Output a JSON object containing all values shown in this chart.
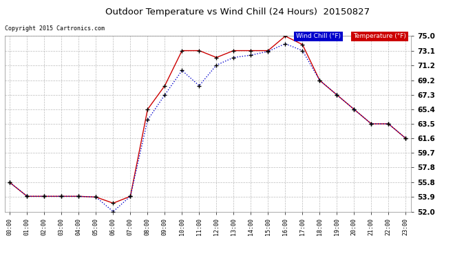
{
  "title": "Outdoor Temperature vs Wind Chill (24 Hours)  20150827",
  "copyright": "Copyright 2015 Cartronics.com",
  "x_labels": [
    "00:00",
    "01:00",
    "02:00",
    "03:00",
    "04:00",
    "05:00",
    "06:00",
    "07:00",
    "08:00",
    "09:00",
    "10:00",
    "11:00",
    "12:00",
    "13:00",
    "14:00",
    "15:00",
    "16:00",
    "17:00",
    "18:00",
    "19:00",
    "20:00",
    "21:00",
    "22:00",
    "23:00"
  ],
  "y_ticks": [
    52.0,
    53.9,
    55.8,
    57.8,
    59.7,
    61.6,
    63.5,
    65.4,
    67.3,
    69.2,
    71.2,
    73.1,
    75.0
  ],
  "ylim": [
    52.0,
    75.0
  ],
  "temperature": [
    55.8,
    54.0,
    54.0,
    54.0,
    54.0,
    53.9,
    53.1,
    54.0,
    65.4,
    68.5,
    73.1,
    73.1,
    72.2,
    73.1,
    73.1,
    73.1,
    75.0,
    73.9,
    69.2,
    67.3,
    65.4,
    63.5,
    63.5,
    61.6
  ],
  "wind_chill": [
    55.8,
    54.0,
    54.0,
    54.0,
    54.0,
    53.9,
    52.0,
    54.0,
    64.0,
    67.3,
    70.5,
    68.5,
    71.2,
    72.2,
    72.5,
    73.0,
    74.0,
    73.1,
    69.2,
    67.3,
    65.4,
    63.5,
    63.5,
    61.6
  ],
  "temp_color": "#cc0000",
  "wind_chill_color": "#0000cc",
  "marker_color": "#000000",
  "background_color": "#1a1a1a",
  "plot_bg_color": "#1a1a1a",
  "grid_color": "#555555",
  "legend_wind_chill_bg": "#0000cc",
  "legend_temp_bg": "#cc0000",
  "legend_text_color": "#ffffff",
  "tick_color": "#000000",
  "title_color": "#000000",
  "copyright_color": "#000000"
}
